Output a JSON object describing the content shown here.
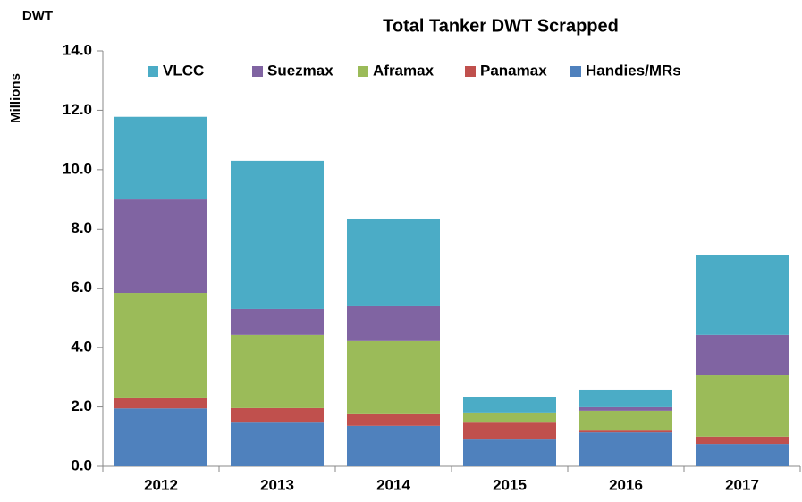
{
  "chart_data": {
    "type": "stacked_bar",
    "title": "Total Tanker DWT Scrapped",
    "unit_label": "DWT",
    "ylabel": "Millions",
    "categories": [
      "2012",
      "2013",
      "2014",
      "2015",
      "2016",
      "2017"
    ],
    "series": [
      {
        "name": "Handies/MRs",
        "color": "#4f81bd",
        "values": [
          1.95,
          1.5,
          1.36,
          0.9,
          1.14,
          0.75
        ]
      },
      {
        "name": "Panamax",
        "color": "#c0504d",
        "values": [
          0.34,
          0.46,
          0.42,
          0.6,
          0.09,
          0.25
        ]
      },
      {
        "name": "Aframax",
        "color": "#9bbb59",
        "values": [
          3.55,
          2.47,
          2.44,
          0.31,
          0.64,
          2.07
        ]
      },
      {
        "name": "Suezmax",
        "color": "#8064a2",
        "values": [
          3.16,
          0.87,
          1.17,
          0,
          0.12,
          1.36
        ]
      },
      {
        "name": "VLCC",
        "color": "#4bacc6",
        "values": [
          2.78,
          5.0,
          2.95,
          0.51,
          0.57,
          2.68
        ]
      }
    ],
    "ylim": [
      0,
      14
    ],
    "yticks": [
      {
        "value": 0,
        "label": "0.0"
      },
      {
        "value": 2,
        "label": "2.0"
      },
      {
        "value": 4,
        "label": "4.0"
      },
      {
        "value": 6,
        "label": "6.0"
      },
      {
        "value": 8,
        "label": "8.0"
      },
      {
        "value": 10,
        "label": "10.0"
      },
      {
        "value": 12,
        "label": "12.0"
      },
      {
        "value": 14,
        "label": "14.0"
      }
    ],
    "grid": false,
    "legend": "top"
  }
}
